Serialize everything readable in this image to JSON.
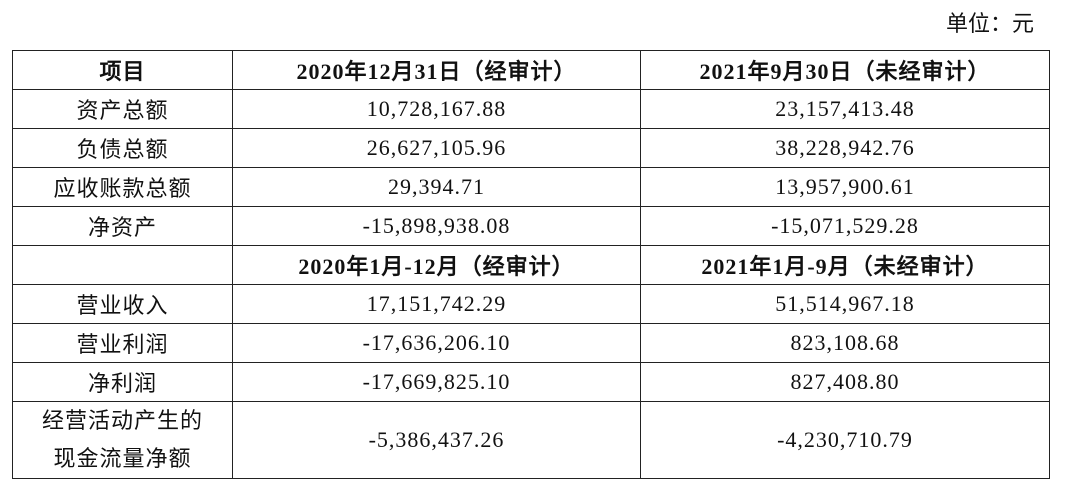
{
  "unit": "单位：元",
  "header": [
    "项目",
    "2020年12月31日（经审计）",
    "2021年9月30日（未经审计）"
  ],
  "rows": [
    [
      "资产总额",
      "10,728,167.88",
      "23,157,413.48"
    ],
    [
      "负债总额",
      "26,627,105.96",
      "38,228,942.76"
    ],
    [
      "应收账款总额",
      "29,394.71",
      "13,957,900.61"
    ],
    [
      "净资产",
      "-15,898,938.08",
      "-15,071,529.28"
    ]
  ],
  "subheader": [
    "2020年1月-12月（经审计）",
    "2021年1月-9月（未经审计）"
  ],
  "rows2": [
    [
      "营业收入",
      "17,151,742.29",
      "51,514,967.18"
    ],
    [
      "营业利润",
      "-17,636,206.10",
      "823,108.68"
    ],
    [
      "净利润",
      "-17,669,825.10",
      "827,408.80"
    ],
    [
      "经营活动产生的现金流量净额",
      "-5,386,437.26",
      "-4,230,710.79"
    ]
  ]
}
